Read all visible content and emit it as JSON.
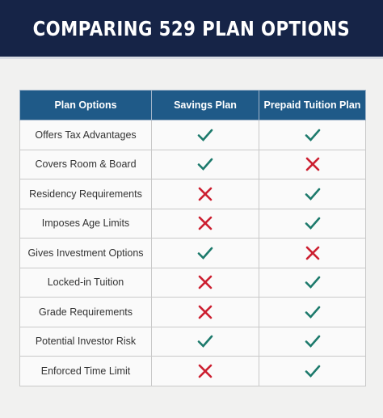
{
  "header": {
    "title": "COMPARING 529 PLAN OPTIONS"
  },
  "table": {
    "columns": [
      "Plan Options",
      "Savings Plan",
      "Prepaid Tuition Plan"
    ],
    "rows": [
      [
        "Offers Tax Advantages",
        true,
        true
      ],
      [
        "Covers Room & Board",
        true,
        false
      ],
      [
        "Residency Requirements",
        false,
        true
      ],
      [
        "Imposes Age Limits",
        false,
        true
      ],
      [
        "Gives Investment Options",
        true,
        false
      ],
      [
        "Locked-in Tuition",
        false,
        true
      ],
      [
        "Grade Requirements",
        false,
        true
      ],
      [
        "Potential Investor Risk",
        true,
        true
      ],
      [
        "Enforced Time Limit",
        false,
        true
      ]
    ]
  }
}
